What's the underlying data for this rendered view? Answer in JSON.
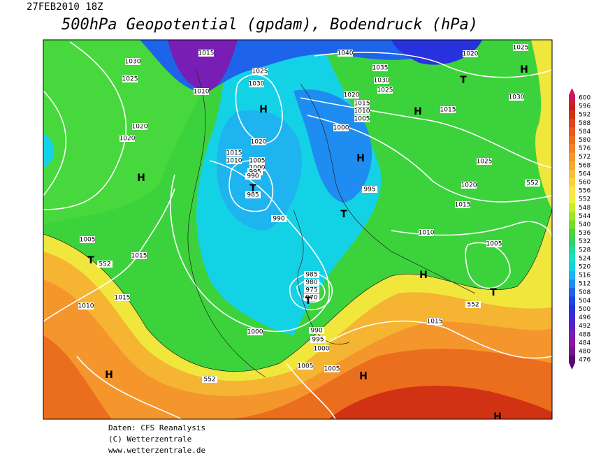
{
  "header": {
    "date": "27FEB2010 18Z",
    "title": "500hPa Geopotential (gpdam), Bodendruck (hPa)"
  },
  "footer": {
    "source": "Daten: CFS Reanalysis",
    "copyright": "(C) Wetterzentrale",
    "url": "www.wetterzentrale.de"
  },
  "legend": {
    "values": [
      600,
      596,
      592,
      588,
      584,
      580,
      576,
      572,
      568,
      564,
      560,
      556,
      552,
      548,
      544,
      540,
      536,
      532,
      528,
      524,
      520,
      516,
      512,
      508,
      504,
      500,
      496,
      492,
      488,
      484,
      480,
      476
    ],
    "colors": [
      "#d2145a",
      "#c81e1e",
      "#d23214",
      "#dc461e",
      "#e65a1e",
      "#eb6e1e",
      "#f08228",
      "#f5962d",
      "#f5aa32",
      "#fabe3c",
      "#fad23c",
      "#fae646",
      "#f0f03c",
      "#c8ee28",
      "#a0e628",
      "#78dc28",
      "#50d23c",
      "#32d264",
      "#1edc96",
      "#14e1c8",
      "#14d2e6",
      "#1eb4f0",
      "#1e8cf0",
      "#1e64eb",
      "#1e46e6",
      "#2832dc",
      "#3c28d2",
      "#5a1ec8",
      "#781eb4",
      "#8c14a0",
      "#78148c",
      "#5a0a6e"
    ]
  },
  "map_labels": [
    "1015",
    "1030",
    "1010",
    "1025",
    "1025",
    "1030",
    "H",
    "1020",
    "1020",
    "H",
    "1040",
    "1035",
    "1030",
    "1025",
    "1020",
    "1015",
    "1010",
    "1005",
    "1000",
    "H",
    "T",
    "1020",
    "1025",
    "H",
    "1030",
    "1015",
    "1025",
    "H",
    "995",
    "T",
    "1020",
    "1015",
    "1010",
    "1005",
    "1020",
    "1015",
    "1010",
    "1005",
    "1000",
    "995",
    "990",
    "T",
    "985",
    "990",
    "1005",
    "T",
    "1015",
    "1010",
    "1015",
    "985",
    "980",
    "975",
    "970",
    "T",
    "1000",
    "990",
    "995",
    "1000",
    "1005",
    "1005",
    "H",
    "H",
    "H",
    "T",
    "1015",
    "H",
    "552",
    "552",
    "552",
    "552"
  ]
}
